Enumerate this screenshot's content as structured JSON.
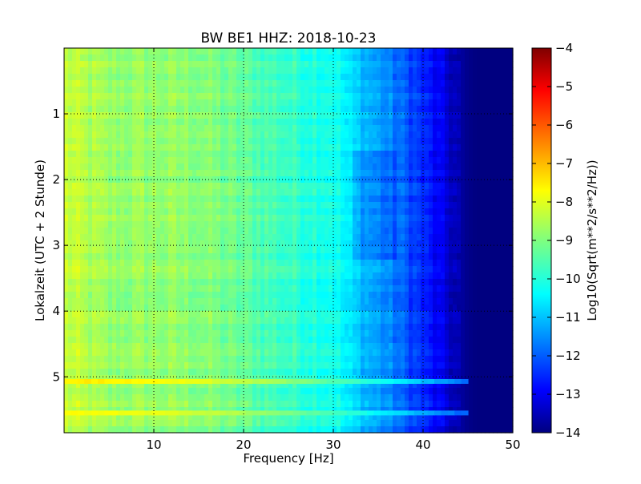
{
  "chart_data": {
    "type": "heatmap",
    "title": "BW BE1 HHZ: 2018-10-23",
    "xlabel": "Frequency [Hz]",
    "ylabel": "Lokalzeit (UTC + 2 Stunde)",
    "xlim": [
      0,
      50
    ],
    "ylim": [
      5.85,
      0
    ],
    "x_ticks": [
      10,
      20,
      30,
      40,
      50
    ],
    "y_ticks": [
      1,
      2,
      3,
      4,
      5
    ],
    "grid": true,
    "grid_style": "dotted",
    "colormap": "jet",
    "colorbar": {
      "label": "Log10(Sqrt(m**2/s**2/Hz))",
      "range": [
        -14,
        -4
      ],
      "ticks": [
        -4,
        -5,
        -6,
        -7,
        -8,
        -9,
        -10,
        -11,
        -12,
        -13,
        -14
      ]
    },
    "frequency_profile": {
      "x": [
        0,
        2,
        5,
        10,
        15,
        20,
        25,
        30,
        32,
        34,
        36,
        38,
        40,
        42,
        44,
        45,
        46,
        48,
        50
      ],
      "values": [
        -8.3,
        -8.5,
        -8.8,
        -8.8,
        -8.9,
        -9.3,
        -9.7,
        -10.0,
        -10.6,
        -11.0,
        -11.4,
        -11.9,
        -12.4,
        -13.0,
        -13.6,
        -13.9,
        -14.0,
        -14.0,
        -14.0
      ]
    },
    "events": [
      {
        "time": 5.07,
        "x_end": 45,
        "level": -7.6
      },
      {
        "time": 5.55,
        "x_end": 45,
        "level": -7.8
      }
    ]
  }
}
